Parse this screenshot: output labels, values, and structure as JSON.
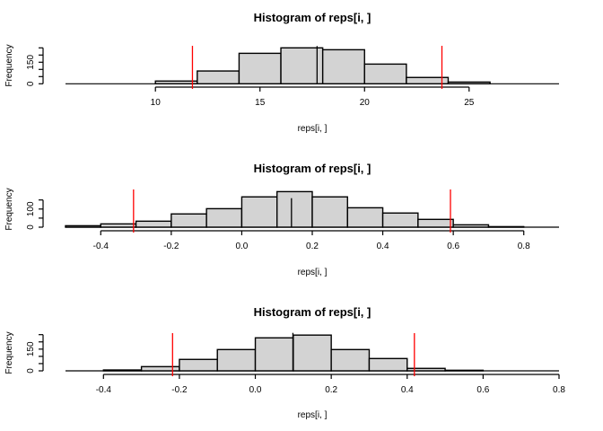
{
  "chart_data": [
    {
      "type": "bar",
      "subtype": "histogram",
      "title": "Histogram of reps[i, ]",
      "xlabel": "reps[i, ]",
      "ylabel": "Frequency",
      "bin_edges": [
        10,
        12,
        14,
        16,
        18,
        20,
        22,
        24,
        26
      ],
      "values": [
        19,
        89,
        212,
        250,
        237,
        137,
        44,
        12
      ],
      "xlim": [
        5.7,
        29.3
      ],
      "ylim": [
        0,
        250
      ],
      "x_ticks": [
        10,
        15,
        20,
        25
      ],
      "x_tick_labels": [
        "10",
        "15",
        "20",
        "25"
      ],
      "y_ticks": [
        0,
        50,
        100,
        150,
        200,
        250
      ],
      "y_tick_labels": [
        "0",
        "",
        "",
        "150",
        "",
        ""
      ],
      "vlines": [
        {
          "x": 11.77,
          "color": "#ff0000",
          "role": "lower-quantile"
        },
        {
          "x": 17.73,
          "color": "#000000",
          "role": "center"
        },
        {
          "x": 23.7,
          "color": "#ff0000",
          "role": "upper-quantile"
        }
      ],
      "grid": false
    },
    {
      "type": "bar",
      "subtype": "histogram",
      "title": "Histogram of reps[i, ]",
      "xlabel": "reps[i, ]",
      "ylabel": "Frequency",
      "bin_edges": [
        -0.5,
        -0.4,
        -0.3,
        -0.2,
        -0.1,
        0.0,
        0.1,
        0.2,
        0.3,
        0.4,
        0.5,
        0.6,
        0.7,
        0.8
      ],
      "values": [
        8,
        18,
        33,
        73,
        102,
        167,
        196,
        167,
        107,
        78,
        43,
        13,
        3
      ],
      "xlim": [
        -0.5,
        0.9
      ],
      "ylim": [
        0,
        150
      ],
      "x_ticks": [
        -0.4,
        -0.2,
        0.0,
        0.2,
        0.4,
        0.6,
        0.8
      ],
      "x_tick_labels": [
        "-0.4",
        "-0.2",
        "0.0",
        "0.2",
        "0.4",
        "0.6",
        "0.8"
      ],
      "y_ticks": [
        0,
        50,
        100,
        150
      ],
      "y_tick_labels": [
        "0",
        "",
        "100",
        ""
      ],
      "vlines": [
        {
          "x": -0.307,
          "color": "#ff0000",
          "role": "lower-quantile"
        },
        {
          "x": 0.141,
          "color": "#000000",
          "role": "center"
        },
        {
          "x": 0.592,
          "color": "#ff0000",
          "role": "upper-quantile"
        }
      ],
      "grid": false
    },
    {
      "type": "bar",
      "subtype": "histogram",
      "title": "Histogram of reps[i, ]",
      "xlabel": "reps[i, ]",
      "ylabel": "Frequency",
      "bin_edges": [
        -0.4,
        -0.3,
        -0.2,
        -0.1,
        0.0,
        0.1,
        0.2,
        0.3,
        0.4,
        0.5,
        0.6
      ],
      "values": [
        6,
        29,
        79,
        147,
        228,
        247,
        147,
        85,
        17,
        4
      ],
      "xlim": [
        -0.5,
        0.8
      ],
      "ylim": [
        0,
        250
      ],
      "x_ticks": [
        -0.4,
        -0.2,
        0.0,
        0.2,
        0.4,
        0.6,
        0.8
      ],
      "x_tick_labels": [
        "-0.4",
        "-0.2",
        "0.0",
        "0.2",
        "0.4",
        "0.6",
        "0.8"
      ],
      "y_ticks": [
        0,
        50,
        100,
        150,
        200,
        250
      ],
      "y_tick_labels": [
        "0",
        "",
        "",
        "150",
        "",
        ""
      ],
      "vlines": [
        {
          "x": -0.218,
          "color": "#ff0000",
          "role": "lower-quantile"
        },
        {
          "x": 0.099,
          "color": "#000000",
          "role": "center"
        },
        {
          "x": 0.419,
          "color": "#ff0000",
          "role": "upper-quantile"
        }
      ],
      "grid": false
    }
  ]
}
